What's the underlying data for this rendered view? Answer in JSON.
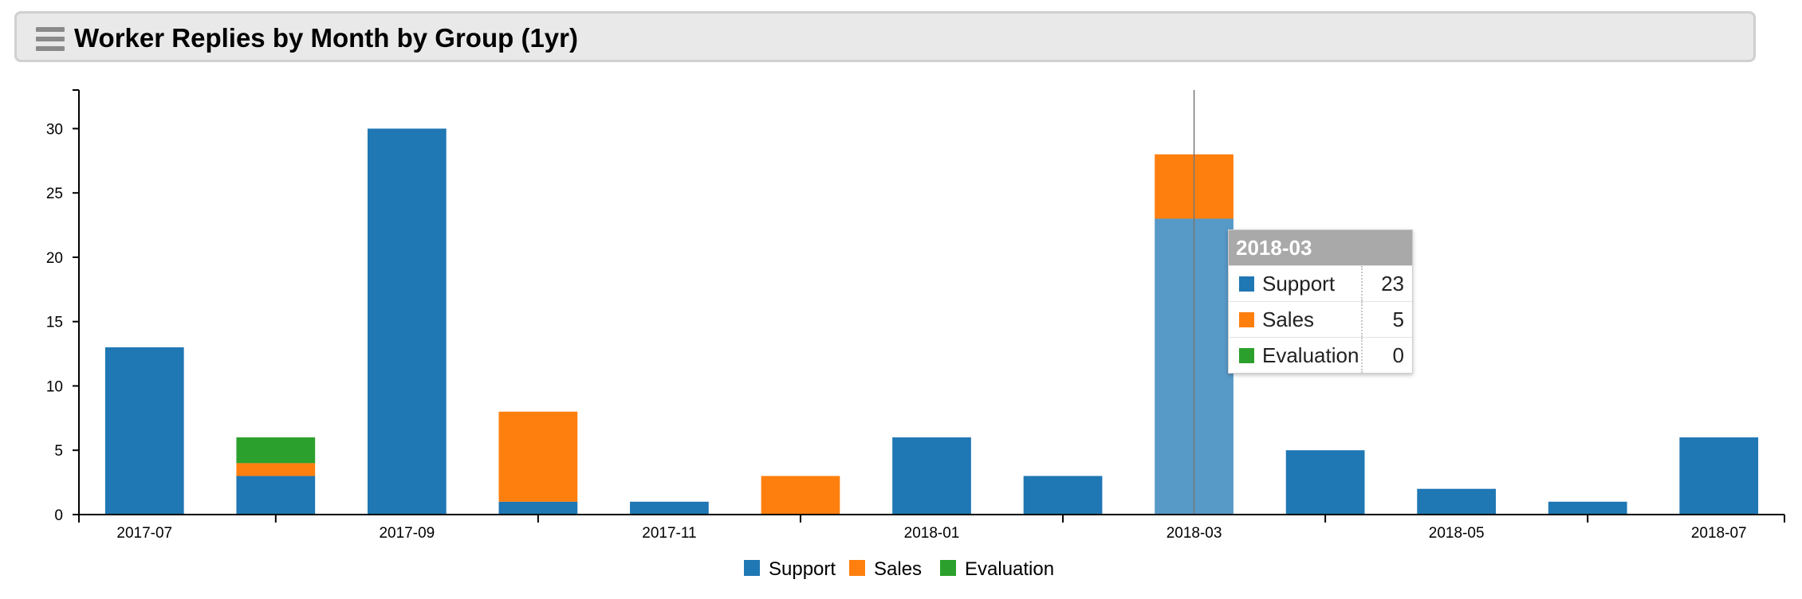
{
  "header": {
    "title": "Worker Replies by Month by Group (1yr)",
    "menu_icon": "hamburger-menu-icon"
  },
  "chart_data": {
    "type": "bar",
    "stacked": true,
    "title": "Worker Replies by Month by Group (1yr)",
    "categories": [
      "2017-07",
      "2017-08",
      "2017-09",
      "2017-10",
      "2017-11",
      "2017-12",
      "2018-01",
      "2018-02",
      "2018-03",
      "2018-04",
      "2018-05",
      "2018-06",
      "2018-07"
    ],
    "tick_labels": [
      "2017-07",
      "",
      "2017-09",
      "",
      "2017-11",
      "",
      "2018-01",
      "",
      "2018-03",
      "",
      "2018-05",
      "",
      "2018-07"
    ],
    "series": [
      {
        "name": "Support",
        "color": "#1f77b4",
        "values": [
          13,
          3,
          30,
          1,
          1,
          0,
          6,
          3,
          23,
          5,
          2,
          1,
          6
        ]
      },
      {
        "name": "Sales",
        "color": "#ff7f0e",
        "values": [
          0,
          1,
          0,
          7,
          0,
          3,
          0,
          0,
          5,
          0,
          0,
          0,
          0
        ]
      },
      {
        "name": "Evaluation",
        "color": "#2ca02c",
        "values": [
          0,
          2,
          0,
          0,
          0,
          0,
          0,
          0,
          0,
          0,
          0,
          0,
          0
        ]
      }
    ],
    "ylim": [
      0,
      33
    ],
    "yticks": [
      0,
      5,
      10,
      15,
      20,
      25,
      30
    ],
    "xlabel": "",
    "ylabel": "",
    "legend_position": "bottom-center",
    "highlighted_category": "2018-03"
  },
  "tooltip": {
    "title": "2018-03",
    "rows": [
      {
        "name": "Support",
        "value": "23",
        "color": "#1f77b4"
      },
      {
        "name": "Sales",
        "value": "5",
        "color": "#ff7f0e"
      },
      {
        "name": "Evaluation",
        "value": "0",
        "color": "#2ca02c"
      }
    ]
  }
}
